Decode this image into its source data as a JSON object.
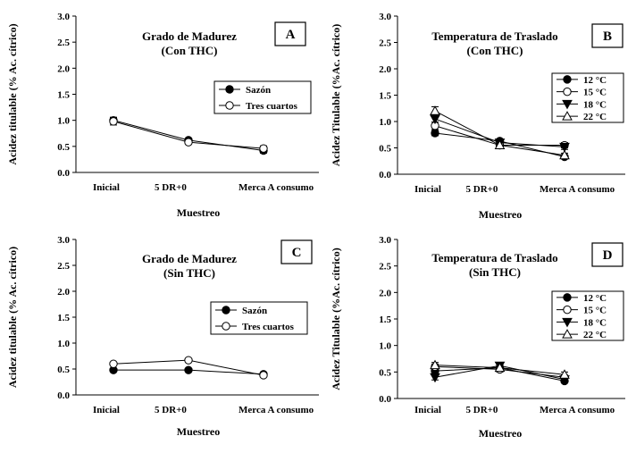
{
  "chart_data": [
    {
      "id": "A",
      "type": "line",
      "panel_label": "A",
      "title": "Grado de Madurez",
      "subtitle": "(Con THC)",
      "xlabel": "Muestreo",
      "ylabel": "Acidez titulable (% Ac. cítrico)",
      "categories": [
        "Inicial",
        "5 DR+0",
        "Merca A consumo"
      ],
      "ylim": [
        0,
        3.0
      ],
      "yticks": [
        "0.0",
        "0.5",
        "1.0",
        "1.5",
        "2.0",
        "2.5",
        "3.0"
      ],
      "legend_position": "center-right",
      "grid": false,
      "series": [
        {
          "name": "Sazón",
          "marker": "circle-filled",
          "values": [
            1.0,
            0.62,
            0.42
          ],
          "errors": [
            0.06,
            0.03,
            0.05
          ]
        },
        {
          "name": "Tres cuartos",
          "marker": "circle-open",
          "values": [
            0.98,
            0.58,
            0.46
          ],
          "errors": [
            0.07,
            0.03,
            0.05
          ]
        }
      ]
    },
    {
      "id": "B",
      "type": "line",
      "panel_label": "B",
      "title": "Temperatura de Traslado",
      "subtitle": "(Con THC)",
      "xlabel": "Muestreo",
      "ylabel": "Acidez Titulable (%Ac. cítrico)",
      "categories": [
        "Inicial",
        "5 DR+0",
        "Merca A consumo"
      ],
      "ylim": [
        0,
        3.0
      ],
      "yticks": [
        "0.0",
        "0.5",
        "1.0",
        "1.5",
        "2.0",
        "2.5",
        "3.0"
      ],
      "legend_position": "right",
      "grid": false,
      "series": [
        {
          "name": "12 °C",
          "marker": "circle-filled",
          "values": [
            0.78,
            0.63,
            0.33
          ],
          "errors": [
            0.05,
            0.04,
            0.03
          ]
        },
        {
          "name": "15 °C",
          "marker": "circle-open",
          "values": [
            0.92,
            0.55,
            0.55
          ],
          "errors": [
            0.07,
            0.04,
            0.05
          ]
        },
        {
          "name": "18 °C",
          "marker": "triangle-down-filled",
          "values": [
            1.05,
            0.6,
            0.52
          ],
          "errors": [
            0.06,
            0.04,
            0.05
          ]
        },
        {
          "name": "22 °C",
          "marker": "triangle-up-open",
          "values": [
            1.2,
            0.55,
            0.36
          ],
          "errors": [
            0.08,
            0.05,
            0.04
          ]
        }
      ]
    },
    {
      "id": "C",
      "type": "line",
      "panel_label": "C",
      "title": "Grado de Madurez",
      "subtitle": "(Sin THC)",
      "xlabel": "Muestreo",
      "ylabel": "Acidez titulable (% Ac. cítrico)",
      "categories": [
        "Inicial",
        "5 DR+0",
        "Merca A consumo"
      ],
      "ylim": [
        0,
        3.0
      ],
      "yticks": [
        "0.0",
        "0.5",
        "1.0",
        "1.5",
        "2.0",
        "2.5",
        "3.0"
      ],
      "legend_position": "center-right",
      "grid": false,
      "series": [
        {
          "name": "Sazón",
          "marker": "circle-filled",
          "values": [
            0.48,
            0.48,
            0.4
          ],
          "errors": [
            0.03,
            0.02,
            0.03
          ]
        },
        {
          "name": "Tres cuartos",
          "marker": "circle-open",
          "values": [
            0.6,
            0.67,
            0.38
          ],
          "errors": [
            0.03,
            0.03,
            0.03
          ]
        }
      ]
    },
    {
      "id": "D",
      "type": "line",
      "panel_label": "D",
      "title": "Temperatura de Traslado",
      "subtitle": "(Sin THC)",
      "xlabel": "Muestreo",
      "ylabel": "Acidez Titulable (%Ac. cítrico)",
      "categories": [
        "Inicial",
        "5 DR+0",
        "Merca A consumo"
      ],
      "ylim": [
        0,
        3.0
      ],
      "yticks": [
        "0.0",
        "0.5",
        "1.0",
        "1.5",
        "2.0",
        "2.5",
        "3.0"
      ],
      "legend_position": "right",
      "grid": false,
      "series": [
        {
          "name": "12 °C",
          "marker": "circle-filled",
          "values": [
            0.52,
            0.58,
            0.33
          ],
          "errors": [
            0.05,
            0.05,
            0.03
          ]
        },
        {
          "name": "15 °C",
          "marker": "circle-open",
          "values": [
            0.6,
            0.55,
            0.4
          ],
          "errors": [
            0.05,
            0.05,
            0.04
          ]
        },
        {
          "name": "18 °C",
          "marker": "triangle-down-filled",
          "values": [
            0.4,
            0.62,
            0.36
          ],
          "errors": [
            0.05,
            0.06,
            0.04
          ]
        },
        {
          "name": "22 °C",
          "marker": "triangle-up-open",
          "values": [
            0.63,
            0.58,
            0.45
          ],
          "errors": [
            0.05,
            0.05,
            0.05
          ]
        }
      ]
    }
  ]
}
